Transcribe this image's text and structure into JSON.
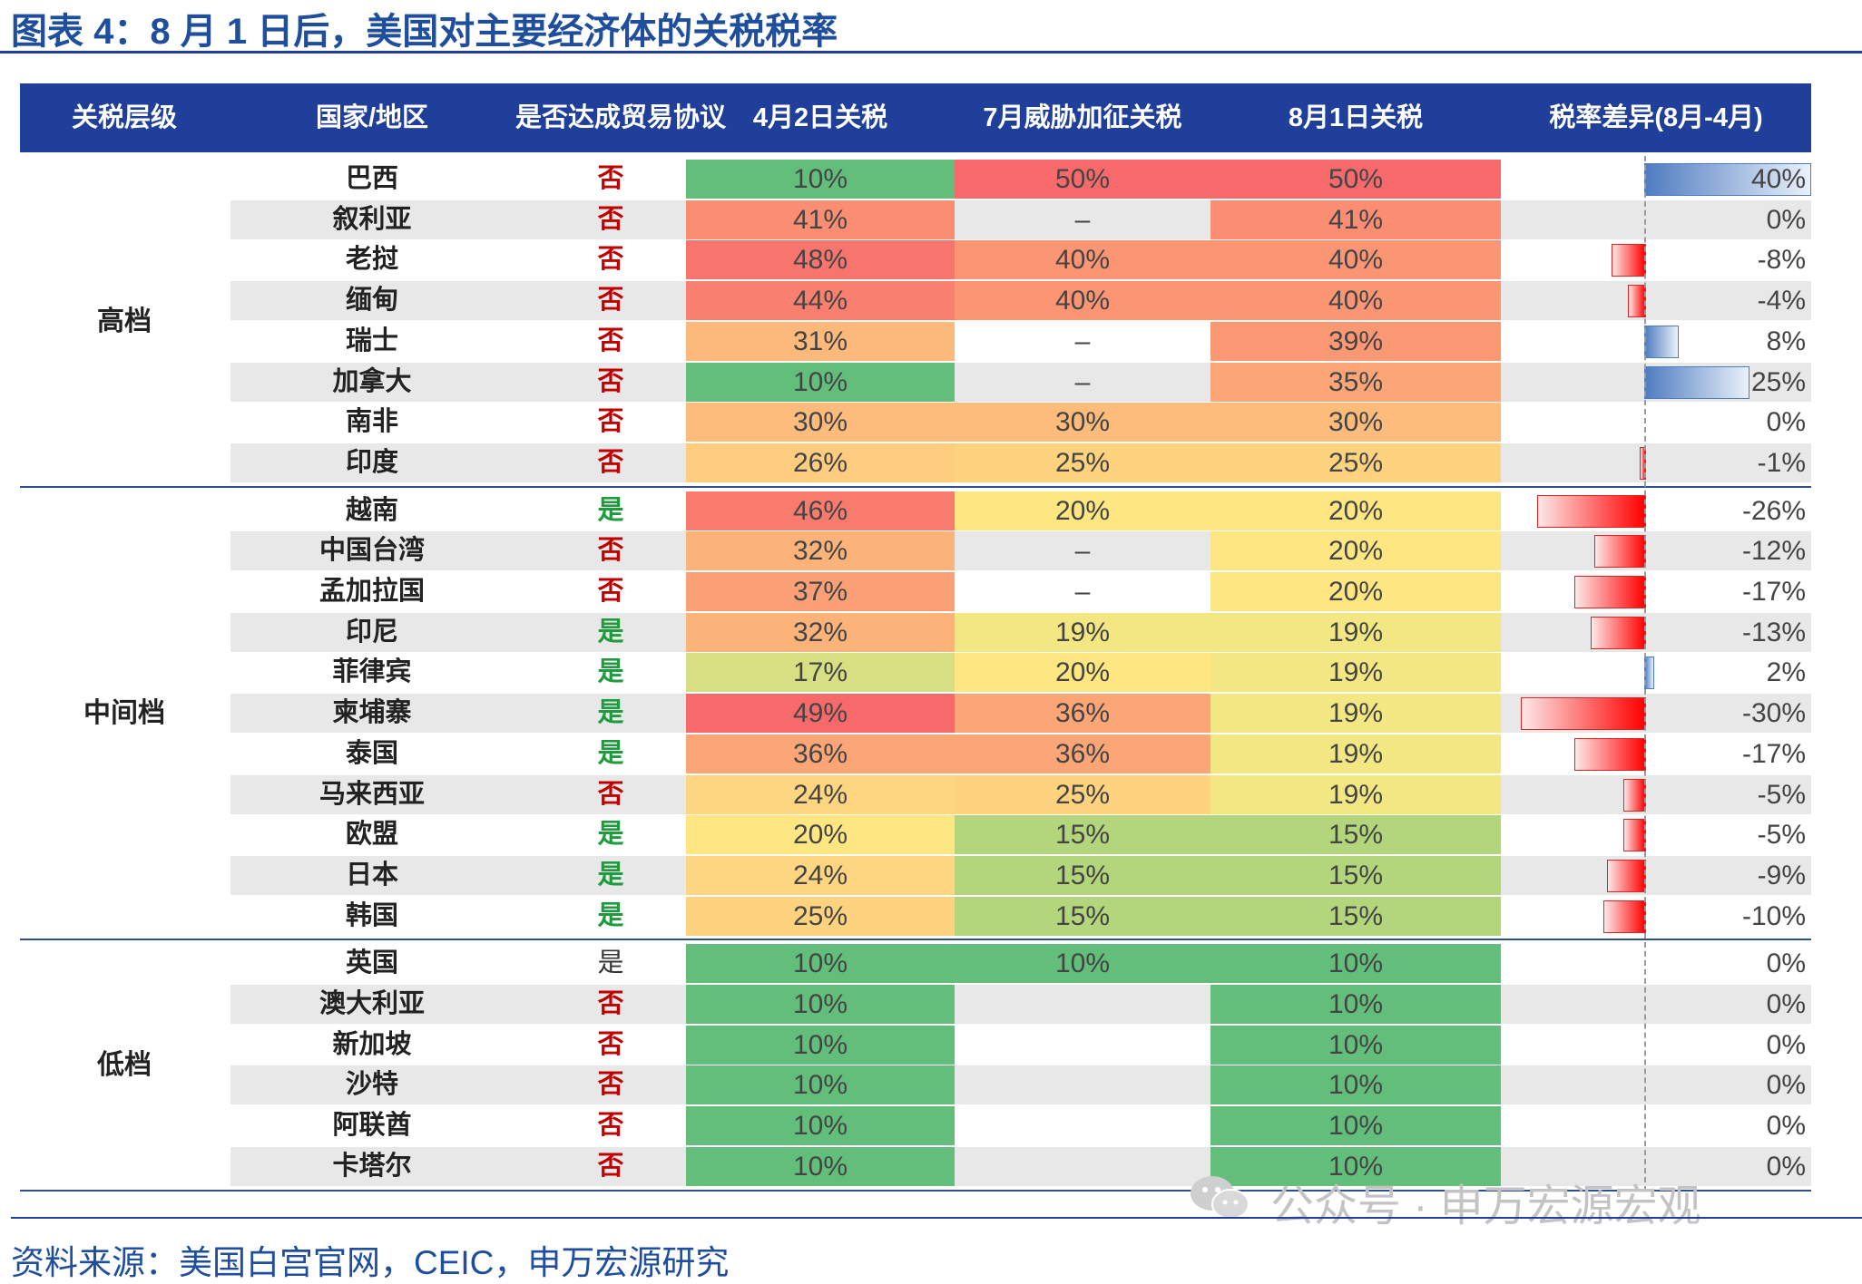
{
  "figure_title": "图表 4：8 月 1 日后，美国对主要经济体的关税税率",
  "source": "资料来源：美国白宫官网，CEIC，申万宏源研究",
  "watermark": "公众号 · 申万宏源宏观",
  "colors": {
    "brand_blue": "#1f3f9a",
    "title_blue": "#1f4e9c",
    "agree_yes": "#1e9b3c",
    "agree_no": "#c00000",
    "agree_neutral": "#333333",
    "bar_positive": "#4f7cc0",
    "bar_negative": "#ff0000",
    "stripe": "#e8e8e8"
  },
  "chart_data": {
    "type": "table",
    "columns": [
      "关税层级",
      "国家/地区",
      "是否达成贸易协议",
      "4月2日关税",
      "7月威胁加征关税",
      "8月1日关税",
      "税率差异(8月-4月)"
    ],
    "groups": [
      {
        "tier": "高档",
        "rows": [
          {
            "country": "巴西",
            "agreement": "否",
            "apr2": "10%",
            "jul_threat": "50%",
            "aug1": "50%",
            "diff": "40%",
            "diff_value": 40,
            "colors": [
              "#63be7b",
              "#f8696b",
              "#f8696b"
            ]
          },
          {
            "country": "叙利亚",
            "agreement": "否",
            "apr2": "41%",
            "jul_threat": "–",
            "aug1": "41%",
            "diff": "0%",
            "diff_value": 0,
            "colors": [
              "#fa8d72",
              null,
              "#fa8d72"
            ]
          },
          {
            "country": "老挝",
            "agreement": "否",
            "apr2": "48%",
            "jul_threat": "40%",
            "aug1": "40%",
            "diff": "-8%",
            "diff_value": -8,
            "colors": [
              "#f8756d",
              "#fb9574",
              "#fb9574"
            ]
          },
          {
            "country": "缅甸",
            "agreement": "否",
            "apr2": "44%",
            "jul_threat": "40%",
            "aug1": "40%",
            "diff": "-4%",
            "diff_value": -4,
            "colors": [
              "#f9806f",
              "#fb9574",
              "#fb9574"
            ]
          },
          {
            "country": "瑞士",
            "agreement": "否",
            "apr2": "31%",
            "jul_threat": "–",
            "aug1": "39%",
            "diff": "8%",
            "diff_value": 8,
            "colors": [
              "#fdb87b",
              null,
              "#fb9874"
            ]
          },
          {
            "country": "加拿大",
            "agreement": "否",
            "apr2": "10%",
            "jul_threat": "–",
            "aug1": "35%",
            "diff": "25%",
            "diff_value": 25,
            "colors": [
              "#63be7b",
              null,
              "#fca577"
            ]
          },
          {
            "country": "南非",
            "agreement": "否",
            "apr2": "30%",
            "jul_threat": "30%",
            "aug1": "30%",
            "diff": "0%",
            "diff_value": 0,
            "colors": [
              "#fdbb7c",
              "#fdbb7c",
              "#fdbb7c"
            ]
          },
          {
            "country": "印度",
            "agreement": "否",
            "apr2": "26%",
            "jul_threat": "25%",
            "aug1": "25%",
            "diff": "-1%",
            "diff_value": -1,
            "colors": [
              "#fecd7f",
              "#fed380",
              "#fed380"
            ]
          }
        ]
      },
      {
        "tier": "中间档",
        "rows": [
          {
            "country": "越南",
            "agreement": "是",
            "apr2": "46%",
            "jul_threat": "20%",
            "aug1": "20%",
            "diff": "-26%",
            "diff_value": -26,
            "colors": [
              "#f97b6e",
              "#fee783",
              "#fee783"
            ]
          },
          {
            "country": "中国台湾",
            "agreement": "否",
            "apr2": "32%",
            "jul_threat": "–",
            "aug1": "20%",
            "diff": "-12%",
            "diff_value": -12,
            "colors": [
              "#fcb37a",
              null,
              "#fee783"
            ]
          },
          {
            "country": "孟加拉国",
            "agreement": "否",
            "apr2": "37%",
            "jul_threat": "–",
            "aug1": "20%",
            "diff": "-17%",
            "diff_value": -17,
            "colors": [
              "#fba076",
              null,
              "#fee783"
            ]
          },
          {
            "country": "印尼",
            "agreement": "是",
            "apr2": "32%",
            "jul_threat": "19%",
            "aug1": "19%",
            "diff": "-13%",
            "diff_value": -13,
            "colors": [
              "#fcb37a",
              "#f2e783",
              "#f2e783"
            ]
          },
          {
            "country": "菲律宾",
            "agreement": "是",
            "apr2": "17%",
            "jul_threat": "20%",
            "aug1": "19%",
            "diff": "2%",
            "diff_value": 2,
            "colors": [
              "#d6df81",
              "#fee783",
              "#f2e783"
            ]
          },
          {
            "country": "柬埔寨",
            "agreement": "是",
            "apr2": "49%",
            "jul_threat": "36%",
            "aug1": "19%",
            "diff": "-30%",
            "diff_value": -30,
            "colors": [
              "#f8696b",
              "#fca577",
              "#f2e783"
            ]
          },
          {
            "country": "泰国",
            "agreement": "是",
            "apr2": "36%",
            "jul_threat": "36%",
            "aug1": "19%",
            "diff": "-17%",
            "diff_value": -17,
            "colors": [
              "#fca577",
              "#fca577",
              "#f2e783"
            ]
          },
          {
            "country": "马来西亚",
            "agreement": "否",
            "apr2": "24%",
            "jul_threat": "25%",
            "aug1": "19%",
            "diff": "-5%",
            "diff_value": -5,
            "colors": [
              "#fed580",
              "#fed380",
              "#f2e783"
            ]
          },
          {
            "country": "欧盟",
            "agreement": "是",
            "apr2": "20%",
            "jul_threat": "15%",
            "aug1": "15%",
            "diff": "-5%",
            "diff_value": -5,
            "colors": [
              "#fee783",
              "#b3d67c",
              "#b3d67c"
            ]
          },
          {
            "country": "日本",
            "agreement": "是",
            "apr2": "24%",
            "jul_threat": "15%",
            "aug1": "15%",
            "diff": "-9%",
            "diff_value": -9,
            "colors": [
              "#fed580",
              "#b3d67c",
              "#b3d67c"
            ]
          },
          {
            "country": "韩国",
            "agreement": "是",
            "apr2": "25%",
            "jul_threat": "15%",
            "aug1": "15%",
            "diff": "-10%",
            "diff_value": -10,
            "colors": [
              "#fed380",
              "#b3d67c",
              "#b3d67c"
            ]
          }
        ]
      },
      {
        "tier": "低档",
        "rows": [
          {
            "country": "英国",
            "agreement": "是",
            "apr2": "10%",
            "jul_threat": "10%",
            "aug1": "10%",
            "diff": "0%",
            "diff_value": 0,
            "colors": [
              "#63be7b",
              "#63be7b",
              "#63be7b"
            ]
          },
          {
            "country": "澳大利亚",
            "agreement": "否",
            "apr2": "10%",
            "jul_threat": "",
            "aug1": "10%",
            "diff": "0%",
            "diff_value": 0,
            "colors": [
              "#63be7b",
              null,
              "#63be7b"
            ]
          },
          {
            "country": "新加坡",
            "agreement": "否",
            "apr2": "10%",
            "jul_threat": "",
            "aug1": "10%",
            "diff": "0%",
            "diff_value": 0,
            "colors": [
              "#63be7b",
              null,
              "#63be7b"
            ]
          },
          {
            "country": "沙特",
            "agreement": "否",
            "apr2": "10%",
            "jul_threat": "",
            "aug1": "10%",
            "diff": "0%",
            "diff_value": 0,
            "colors": [
              "#63be7b",
              null,
              "#63be7b"
            ]
          },
          {
            "country": "阿联酋",
            "agreement": "否",
            "apr2": "10%",
            "jul_threat": "",
            "aug1": "10%",
            "diff": "0%",
            "diff_value": 0,
            "colors": [
              "#63be7b",
              null,
              "#63be7b"
            ]
          },
          {
            "country": "卡塔尔",
            "agreement": "否",
            "apr2": "10%",
            "jul_threat": "",
            "aug1": "10%",
            "diff": "0%",
            "diff_value": 0,
            "colors": [
              "#63be7b",
              null,
              "#63be7b"
            ]
          }
        ]
      }
    ],
    "diff_axis_range": [
      -30,
      40
    ]
  }
}
